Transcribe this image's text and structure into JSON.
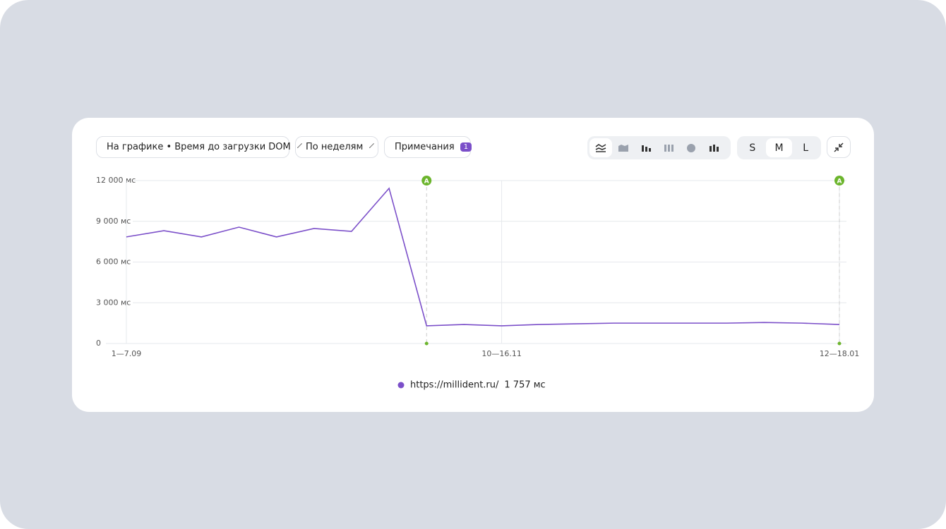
{
  "toolbar": {
    "metric_dropdown": "На графике • Время до загрузки DOM",
    "period_dropdown": "По неделям",
    "notes_button": "Примечания",
    "notes_count": 1,
    "sizes": [
      "S",
      "M",
      "L"
    ]
  },
  "chart_data": {
    "type": "line",
    "categories": [
      "1—7.09",
      null,
      null,
      null,
      null,
      null,
      null,
      null,
      null,
      null,
      "10—16.11",
      null,
      null,
      null,
      null,
      null,
      null,
      null,
      null,
      "12—18.01"
    ],
    "series": [
      {
        "name": "https://millident.ru/",
        "color": "#7b4fc9",
        "values": [
          7850,
          8310,
          7850,
          8570,
          7850,
          8470,
          8260,
          11430,
          1300,
          1400,
          1300,
          1400,
          1450,
          1500,
          1500,
          1500,
          1500,
          1550,
          1500,
          1400
        ]
      }
    ],
    "legend_value": "1 757 мс",
    "ylim": [
      0,
      12000
    ],
    "yticks": [
      0,
      {
        "value": 3000,
        "label": "3 000 мс"
      },
      {
        "value": 6000,
        "label": "6 000 мс"
      },
      {
        "value": 9000,
        "label": "9 000 мс"
      },
      {
        "value": 12000,
        "label": "12 000 мс"
      }
    ],
    "grid": true,
    "annotations": [
      {
        "text": "A",
        "at": 8
      },
      {
        "text": "A",
        "at": 19
      }
    ],
    "annotation_color": "#6cb52d"
  }
}
